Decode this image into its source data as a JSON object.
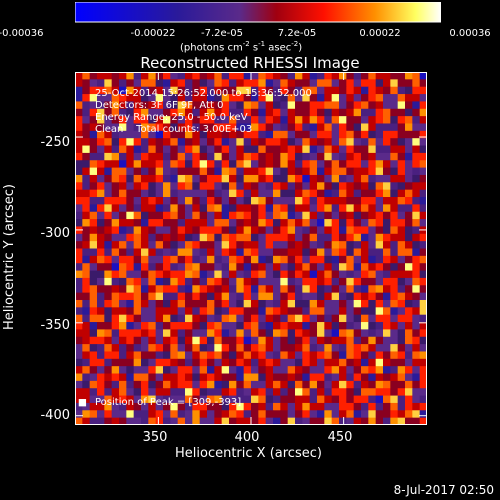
{
  "chart_data": {
    "type": "heatmap",
    "title": "Reconstructed RHESSI Image",
    "xlabel": "Heliocentric X (arcsec)",
    "ylabel": "Heliocentric Y (arcsec)",
    "xlim": [
      305,
      495
    ],
    "ylim": [
      -405,
      -215
    ],
    "x_ticks": [
      "350",
      "400",
      "450"
    ],
    "y_ticks": [
      "-250",
      "-300",
      "-350",
      "-400"
    ],
    "colorbar": {
      "ticks": [
        "-0.00036",
        "-0.00022",
        "-7.2e-05",
        "7.2e-05",
        "0.00022",
        "0.00036"
      ],
      "range": [
        -0.00036,
        0.00036
      ],
      "unit_base": "(photons cm",
      "unit_s": "s",
      "unit_asec": "asec",
      "unit_exp2": "-2",
      "unit_exp1": "-1",
      "unit_end": ")"
    },
    "annotations": [
      "25-Oct-2014 15:26:52.000 to 15:36:52.000",
      "Detectors: 3F 6F 9F, Att 0",
      "Energy Range: 25.0 - 50.0 keV",
      "Clean    Total counts: 3.00E+03"
    ],
    "peak_label": "Position of Peak = [309,-393]",
    "peak": {
      "x": 309,
      "y": -393
    },
    "colors": [
      "#0000ff",
      "#4020a0",
      "#5a2a8a",
      "#c00000",
      "#ff2000",
      "#ff9000",
      "#ffff60",
      "#ffffff"
    ]
  },
  "footer": {
    "date": "8-Jul-2017 02:50"
  }
}
